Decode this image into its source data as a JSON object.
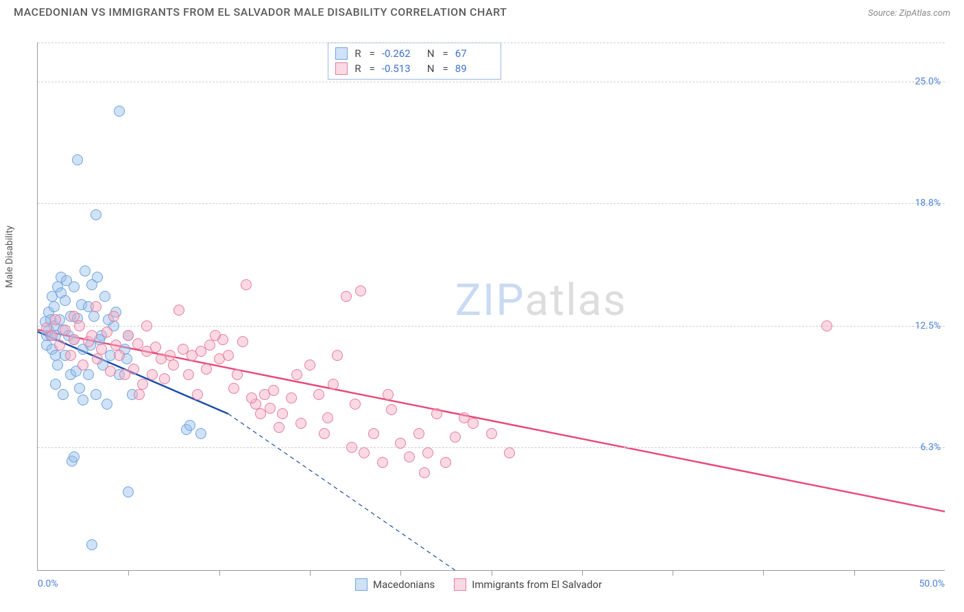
{
  "header": {
    "title": "MACEDONIAN VS IMMIGRANTS FROM EL SALVADOR MALE DISABILITY CORRELATION CHART",
    "source_prefix": "Source: ",
    "source_name": "ZipAtlas.com"
  },
  "chart": {
    "type": "scatter",
    "ylabel": "Male Disability",
    "background_color": "#ffffff",
    "grid_color": "#d0d0d0",
    "axis_color": "#999999",
    "label_color": "#4a7fd8",
    "text_color": "#5a5a5a",
    "marker_radius": 8,
    "marker_fill_opacity": 0.35,
    "marker_stroke_width": 1.5,
    "xlim": [
      0,
      50
    ],
    "ylim": [
      0,
      27
    ],
    "x_tick_step": 5,
    "x_min_label": "0.0%",
    "x_max_label": "50.0%",
    "y_ticks": [
      {
        "v": 6.3,
        "label": "6.3%"
      },
      {
        "v": 12.5,
        "label": "12.5%"
      },
      {
        "v": 18.8,
        "label": "18.8%"
      },
      {
        "v": 25.0,
        "label": "25.0%"
      }
    ],
    "watermark": {
      "part1": "ZIP",
      "part2": "atlas"
    },
    "series": [
      {
        "name": "Macedonians",
        "color": "#6fa3e0",
        "fill": "rgba(150,190,235,0.45)",
        "R": "-0.262",
        "N": "67",
        "trend": {
          "color": "#1b4da8",
          "width": 2.5,
          "solid": {
            "x1": 0,
            "y1": 12.2,
            "x2": 10.5,
            "y2": 8.0
          },
          "dashed": {
            "x1": 10.5,
            "y1": 8.0,
            "x2": 23.0,
            "y2": 0.0
          }
        },
        "points": [
          [
            0.4,
            12.7
          ],
          [
            0.5,
            12.0
          ],
          [
            0.5,
            11.5
          ],
          [
            0.6,
            13.2
          ],
          [
            0.6,
            12.3
          ],
          [
            0.7,
            12.0
          ],
          [
            0.7,
            12.8
          ],
          [
            0.8,
            11.3
          ],
          [
            0.8,
            14.0
          ],
          [
            0.9,
            12.5
          ],
          [
            0.9,
            13.5
          ],
          [
            1.0,
            11.0
          ],
          [
            1.0,
            12.0
          ],
          [
            1.1,
            14.5
          ],
          [
            1.1,
            10.5
          ],
          [
            1.2,
            12.8
          ],
          [
            1.3,
            15.0
          ],
          [
            1.3,
            14.2
          ],
          [
            1.4,
            12.3
          ],
          [
            1.5,
            11.0
          ],
          [
            1.5,
            13.8
          ],
          [
            1.6,
            14.8
          ],
          [
            1.7,
            12.0
          ],
          [
            1.8,
            10.0
          ],
          [
            1.8,
            13.0
          ],
          [
            2.0,
            14.5
          ],
          [
            2.0,
            11.8
          ],
          [
            2.1,
            10.2
          ],
          [
            2.2,
            12.9
          ],
          [
            2.3,
            9.3
          ],
          [
            2.4,
            13.6
          ],
          [
            2.5,
            11.3
          ],
          [
            2.6,
            15.3
          ],
          [
            2.8,
            10.0
          ],
          [
            2.9,
            11.5
          ],
          [
            3.0,
            14.6
          ],
          [
            3.1,
            13.0
          ],
          [
            3.2,
            9.0
          ],
          [
            3.3,
            15.0
          ],
          [
            3.5,
            12.0
          ],
          [
            3.6,
            10.5
          ],
          [
            3.7,
            14.0
          ],
          [
            3.8,
            8.5
          ],
          [
            4.0,
            11.0
          ],
          [
            4.2,
            12.5
          ],
          [
            4.5,
            10.0
          ],
          [
            4.8,
            11.3
          ],
          [
            5.0,
            12.0
          ],
          [
            5.2,
            9.0
          ],
          [
            1.9,
            5.6
          ],
          [
            2.0,
            5.8
          ],
          [
            5.0,
            4.0
          ],
          [
            3.0,
            1.3
          ],
          [
            2.2,
            21.0
          ],
          [
            3.2,
            18.2
          ],
          [
            4.5,
            23.5
          ],
          [
            8.2,
            7.2
          ],
          [
            8.4,
            7.4
          ],
          [
            9.0,
            7.0
          ],
          [
            1.0,
            9.5
          ],
          [
            1.4,
            9.0
          ],
          [
            2.5,
            8.7
          ],
          [
            2.8,
            13.5
          ],
          [
            3.4,
            11.8
          ],
          [
            3.9,
            12.8
          ],
          [
            4.3,
            13.2
          ],
          [
            4.9,
            10.8
          ]
        ]
      },
      {
        "name": "Immigrants from El Salvador",
        "color": "#e67d9b",
        "fill": "rgba(245,170,195,0.45)",
        "R": "-0.513",
        "N": "89",
        "trend": {
          "color": "#e84b7a",
          "width": 2.5,
          "solid": {
            "x1": 0,
            "y1": 12.3,
            "x2": 50,
            "y2": 3.0
          }
        },
        "points": [
          [
            0.5,
            12.4
          ],
          [
            0.8,
            12.0
          ],
          [
            1.0,
            12.8
          ],
          [
            1.2,
            11.5
          ],
          [
            1.5,
            12.3
          ],
          [
            1.8,
            11.0
          ],
          [
            2.0,
            11.8
          ],
          [
            2.3,
            12.5
          ],
          [
            2.5,
            10.5
          ],
          [
            2.8,
            11.7
          ],
          [
            3.0,
            12.0
          ],
          [
            3.3,
            10.8
          ],
          [
            3.5,
            11.3
          ],
          [
            3.8,
            12.2
          ],
          [
            4.0,
            10.2
          ],
          [
            4.3,
            11.5
          ],
          [
            4.5,
            11.0
          ],
          [
            4.8,
            10.0
          ],
          [
            5.0,
            12.0
          ],
          [
            5.3,
            10.3
          ],
          [
            5.5,
            11.6
          ],
          [
            5.8,
            9.5
          ],
          [
            6.0,
            11.2
          ],
          [
            6.3,
            10.0
          ],
          [
            6.5,
            11.4
          ],
          [
            6.8,
            10.8
          ],
          [
            7.0,
            9.8
          ],
          [
            7.3,
            11.0
          ],
          [
            7.5,
            10.5
          ],
          [
            8.0,
            11.3
          ],
          [
            8.3,
            10.0
          ],
          [
            8.5,
            11.0
          ],
          [
            9.0,
            11.2
          ],
          [
            9.3,
            10.3
          ],
          [
            9.5,
            11.5
          ],
          [
            10.0,
            10.8
          ],
          [
            10.5,
            11.0
          ],
          [
            11.0,
            10.0
          ],
          [
            11.5,
            14.6
          ],
          [
            12.0,
            8.5
          ],
          [
            12.3,
            8.0
          ],
          [
            12.5,
            9.0
          ],
          [
            12.8,
            8.3
          ],
          [
            13.0,
            9.2
          ],
          [
            13.5,
            8.0
          ],
          [
            14.0,
            8.8
          ],
          [
            14.5,
            7.5
          ],
          [
            15.0,
            10.5
          ],
          [
            15.5,
            9.0
          ],
          [
            16.0,
            7.8
          ],
          [
            16.5,
            11.0
          ],
          [
            17.0,
            14.0
          ],
          [
            17.5,
            8.5
          ],
          [
            18.0,
            6.0
          ],
          [
            18.5,
            7.0
          ],
          [
            19.0,
            5.5
          ],
          [
            19.5,
            8.2
          ],
          [
            20.0,
            6.5
          ],
          [
            20.5,
            5.8
          ],
          [
            21.0,
            7.0
          ],
          [
            21.5,
            6.0
          ],
          [
            22.0,
            8.0
          ],
          [
            22.5,
            5.5
          ],
          [
            23.0,
            6.8
          ],
          [
            24.0,
            7.5
          ],
          [
            25.0,
            7.0
          ],
          [
            10.2,
            11.8
          ],
          [
            10.8,
            9.3
          ],
          [
            11.3,
            11.7
          ],
          [
            13.3,
            7.3
          ],
          [
            14.3,
            10.0
          ],
          [
            15.8,
            7.0
          ],
          [
            16.3,
            9.5
          ],
          [
            17.3,
            6.3
          ],
          [
            19.3,
            9.0
          ],
          [
            21.3,
            5.0
          ],
          [
            23.5,
            7.8
          ],
          [
            26.0,
            6.0
          ],
          [
            7.8,
            13.3
          ],
          [
            9.8,
            12.0
          ],
          [
            6.0,
            12.5
          ],
          [
            4.2,
            13.0
          ],
          [
            3.2,
            13.5
          ],
          [
            2.0,
            13.0
          ],
          [
            43.5,
            12.5
          ],
          [
            17.8,
            14.3
          ],
          [
            5.6,
            9.0
          ],
          [
            8.8,
            9.0
          ],
          [
            11.8,
            8.8
          ]
        ]
      }
    ]
  }
}
